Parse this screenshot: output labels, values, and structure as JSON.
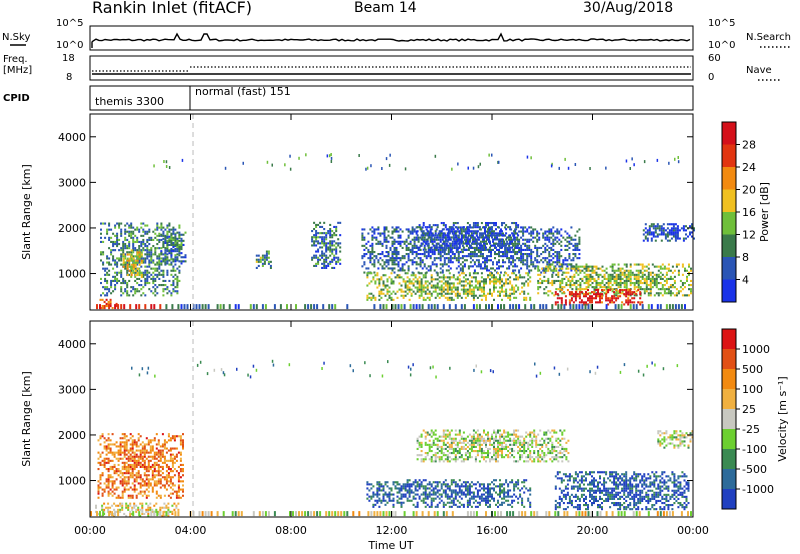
{
  "header": {
    "radar": "Rankin Inlet (fitACF)",
    "beam": "Beam 14",
    "date": "30/Aug/2018"
  },
  "status": {
    "nsky_label": "N.Sky",
    "nsearch_label": "N.Search",
    "nsky_ticks": [
      "10^5",
      "10^0"
    ],
    "nsearch_ticks": [
      "10^5",
      "10^0"
    ],
    "freq_label": "Freq.",
    "freq_unit": "[MHz]",
    "freq_ticks": [
      "18",
      "8"
    ],
    "nave_label": "Nave",
    "nave_ticks": [
      "60",
      "0"
    ],
    "cpid_label": "CPID",
    "cpid_segments": [
      "themis 3300",
      "normal (fast) 151"
    ]
  },
  "chart_data": [
    {
      "type": "heatmap",
      "panel": "power",
      "ylabel": "Slant Range [km]",
      "xlabel": "",
      "x_ticks": [
        "00:00",
        "04:00",
        "08:00",
        "12:00",
        "16:00",
        "20:00",
        "00:00"
      ],
      "y_ticks": [
        "1000",
        "2000",
        "3000",
        "4000"
      ],
      "ylim": [
        200,
        4500
      ],
      "colorbar_label": "Power [dB]",
      "colorbar_ticks": [
        "4",
        "8",
        "12",
        "16",
        "20",
        "24",
        "28"
      ],
      "colorbar_colors": [
        "#1a33e8",
        "#2a55b5",
        "#3a7a4a",
        "#6fbf3a",
        "#f0c020",
        "#f28a10",
        "#e23510",
        "#d4101a"
      ],
      "clusters": [
        {
          "t0": 0.3,
          "t1": 1.2,
          "r0": 220,
          "r1": 420,
          "level": 0.8
        },
        {
          "t0": 0.4,
          "t1": 3.6,
          "r0": 500,
          "r1": 2100,
          "level": 0.3
        },
        {
          "t0": 1.3,
          "t1": 2.1,
          "r0": 900,
          "r1": 1500,
          "level": 0.55
        },
        {
          "t0": 2.8,
          "t1": 3.8,
          "r0": 1200,
          "r1": 1900,
          "level": 0.25
        },
        {
          "t0": 6.6,
          "t1": 7.2,
          "r0": 1100,
          "r1": 1500,
          "level": 0.35
        },
        {
          "t0": 8.8,
          "t1": 10.0,
          "r0": 1100,
          "r1": 2100,
          "level": 0.25
        },
        {
          "t0": 10.8,
          "t1": 19.5,
          "r0": 1000,
          "r1": 2000,
          "level": 0.2
        },
        {
          "t0": 11.0,
          "t1": 17.5,
          "r0": 400,
          "r1": 1000,
          "level": 0.45
        },
        {
          "t0": 13.0,
          "t1": 17.0,
          "r0": 1500,
          "r1": 2100,
          "level": 0.15
        },
        {
          "t0": 17.8,
          "t1": 23.9,
          "r0": 500,
          "r1": 1200,
          "level": 0.45
        },
        {
          "t0": 18.5,
          "t1": 22.0,
          "r0": 300,
          "r1": 650,
          "level": 0.9
        },
        {
          "t0": 22.0,
          "t1": 24.0,
          "r0": 1700,
          "r1": 2100,
          "level": 0.15
        }
      ]
    },
    {
      "type": "heatmap",
      "panel": "velocity",
      "ylabel": "Slant Range [km]",
      "xlabel": "Time UT",
      "x_ticks": [
        "00:00",
        "04:00",
        "08:00",
        "12:00",
        "16:00",
        "20:00",
        "00:00"
      ],
      "y_ticks": [
        "1000",
        "2000",
        "3000",
        "4000"
      ],
      "ylim": [
        200,
        4500
      ],
      "colorbar_label": "Velocity [m s⁻¹]",
      "colorbar_ticks": [
        "1000",
        "500",
        "100",
        "25",
        "-25",
        "-100",
        "-500",
        "-1000"
      ],
      "colorbar_colors": [
        "#2040c0",
        "#2d6b9a",
        "#3a8a52",
        "#6ccf30",
        "#c8c8c0",
        "#f0b040",
        "#f28a10",
        "#e25015",
        "#dc1414"
      ],
      "clusters": [
        {
          "t0": 0.3,
          "t1": 3.7,
          "r0": 600,
          "r1": 2000,
          "level": 0.75
        },
        {
          "t0": 0.2,
          "t1": 3.5,
          "r0": 200,
          "r1": 500,
          "level": 0.55
        },
        {
          "t0": 11.0,
          "t1": 17.5,
          "r0": 400,
          "r1": 1000,
          "level": 0.15
        },
        {
          "t0": 13.0,
          "t1": 19.0,
          "r0": 1400,
          "r1": 2100,
          "level": 0.45
        },
        {
          "t0": 18.5,
          "t1": 23.8,
          "r0": 350,
          "r1": 1200,
          "level": 0.12
        },
        {
          "t0": 22.5,
          "t1": 24.0,
          "r0": 1700,
          "r1": 2100,
          "level": 0.45
        }
      ]
    }
  ]
}
